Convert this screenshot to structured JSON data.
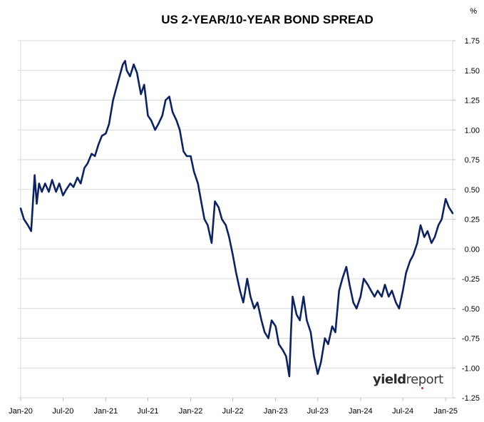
{
  "chart_data": {
    "type": "line",
    "title": "US 2-YEAR/10-YEAR BOND SPREAD",
    "unit": "%",
    "x_tick_labels": [
      "Jan-20",
      "Jul-20",
      "Jan-21",
      "Jul-21",
      "Jan-22",
      "Jul-22",
      "Jan-23",
      "Jul-23",
      "Jan-24",
      "Jul-24",
      "Jan-25"
    ],
    "y_tick_labels": [
      "1.75",
      "1.50",
      "1.25",
      "1.00",
      "0.75",
      "0.50",
      "0.25",
      "0.00",
      "-0.25",
      "-0.50",
      "-0.75",
      "-1.00",
      "-1.25"
    ],
    "ylim": [
      -1.25,
      1.75
    ],
    "xlim": [
      "2020-01-01",
      "2025-01-31"
    ],
    "grid": true,
    "series": [
      {
        "color": "#0b2265",
        "x": [
          "2020-01-01",
          "2020-01-15",
          "2020-02-01",
          "2020-02-15",
          "2020-03-01",
          "2020-03-10",
          "2020-03-20",
          "2020-04-01",
          "2020-04-15",
          "2020-05-01",
          "2020-05-15",
          "2020-06-01",
          "2020-06-15",
          "2020-07-01",
          "2020-07-15",
          "2020-08-01",
          "2020-08-15",
          "2020-09-01",
          "2020-09-15",
          "2020-10-01",
          "2020-10-15",
          "2020-11-01",
          "2020-11-15",
          "2020-12-01",
          "2020-12-15",
          "2021-01-01",
          "2021-01-15",
          "2021-02-01",
          "2021-02-15",
          "2021-03-01",
          "2021-03-15",
          "2021-03-25",
          "2021-04-01",
          "2021-04-15",
          "2021-05-01",
          "2021-05-15",
          "2021-06-01",
          "2021-06-15",
          "2021-07-01",
          "2021-07-15",
          "2021-08-01",
          "2021-08-15",
          "2021-09-01",
          "2021-09-15",
          "2021-10-01",
          "2021-10-15",
          "2021-11-01",
          "2021-11-15",
          "2021-12-01",
          "2021-12-15",
          "2022-01-01",
          "2022-01-15",
          "2022-02-01",
          "2022-02-15",
          "2022-03-01",
          "2022-03-15",
          "2022-04-01",
          "2022-04-15",
          "2022-05-01",
          "2022-05-15",
          "2022-06-01",
          "2022-06-15",
          "2022-07-01",
          "2022-07-15",
          "2022-08-01",
          "2022-08-15",
          "2022-09-01",
          "2022-09-15",
          "2022-10-01",
          "2022-10-15",
          "2022-11-01",
          "2022-11-15",
          "2022-12-01",
          "2022-12-15",
          "2023-01-01",
          "2023-01-15",
          "2023-02-01",
          "2023-02-15",
          "2023-03-01",
          "2023-03-08",
          "2023-03-15",
          "2023-04-01",
          "2023-04-15",
          "2023-05-01",
          "2023-05-15",
          "2023-06-01",
          "2023-06-15",
          "2023-07-01",
          "2023-07-15",
          "2023-08-01",
          "2023-08-15",
          "2023-09-01",
          "2023-09-15",
          "2023-10-01",
          "2023-10-15",
          "2023-11-01",
          "2023-11-15",
          "2023-12-01",
          "2023-12-15",
          "2024-01-01",
          "2024-01-15",
          "2024-02-01",
          "2024-02-15",
          "2024-03-01",
          "2024-03-15",
          "2024-04-01",
          "2024-04-15",
          "2024-05-01",
          "2024-05-15",
          "2024-06-01",
          "2024-06-15",
          "2024-07-01",
          "2024-07-15",
          "2024-08-01",
          "2024-08-15",
          "2024-09-01",
          "2024-09-15",
          "2024-10-01",
          "2024-10-15",
          "2024-11-01",
          "2024-11-15",
          "2024-12-01",
          "2024-12-15",
          "2025-01-01",
          "2025-01-15",
          "2025-01-31"
        ],
        "values": [
          0.34,
          0.25,
          0.2,
          0.15,
          0.62,
          0.38,
          0.55,
          0.48,
          0.55,
          0.48,
          0.58,
          0.48,
          0.55,
          0.45,
          0.5,
          0.55,
          0.52,
          0.6,
          0.55,
          0.68,
          0.72,
          0.8,
          0.78,
          0.88,
          0.95,
          0.97,
          1.05,
          1.25,
          1.35,
          1.45,
          1.55,
          1.58,
          1.5,
          1.45,
          1.55,
          1.48,
          1.3,
          1.38,
          1.12,
          1.08,
          1.0,
          1.05,
          1.12,
          1.25,
          1.28,
          1.15,
          1.08,
          1.0,
          0.82,
          0.78,
          0.78,
          0.65,
          0.55,
          0.4,
          0.25,
          0.2,
          0.05,
          0.4,
          0.35,
          0.25,
          0.2,
          0.1,
          -0.05,
          -0.2,
          -0.35,
          -0.45,
          -0.25,
          -0.4,
          -0.5,
          -0.45,
          -0.6,
          -0.7,
          -0.75,
          -0.6,
          -0.65,
          -0.8,
          -0.85,
          -0.9,
          -1.07,
          -0.7,
          -0.4,
          -0.55,
          -0.6,
          -0.4,
          -0.6,
          -0.7,
          -0.9,
          -1.05,
          -0.95,
          -0.75,
          -0.8,
          -0.65,
          -0.7,
          -0.35,
          -0.25,
          -0.15,
          -0.3,
          -0.45,
          -0.5,
          -0.4,
          -0.25,
          -0.3,
          -0.35,
          -0.4,
          -0.35,
          -0.4,
          -0.3,
          -0.4,
          -0.35,
          -0.45,
          -0.5,
          -0.35,
          -0.2,
          -0.1,
          -0.05,
          0.05,
          0.2,
          0.1,
          0.15,
          0.05,
          0.1,
          0.2,
          0.25,
          0.42,
          0.35,
          0.3
        ]
      }
    ]
  },
  "watermark": {
    "bold_part": "yield",
    "light_part": "report"
  }
}
